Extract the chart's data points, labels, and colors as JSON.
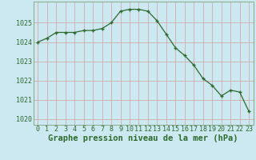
{
  "x": [
    0,
    1,
    2,
    3,
    4,
    5,
    6,
    7,
    8,
    9,
    10,
    11,
    12,
    13,
    14,
    15,
    16,
    17,
    18,
    19,
    20,
    21,
    22,
    23
  ],
  "y": [
    1024.0,
    1024.2,
    1024.5,
    1024.5,
    1024.5,
    1024.6,
    1024.6,
    1024.7,
    1025.0,
    1025.6,
    1025.7,
    1025.7,
    1025.6,
    1025.1,
    1024.4,
    1023.7,
    1023.3,
    1022.8,
    1022.1,
    1021.75,
    1021.2,
    1021.5,
    1021.4,
    1020.4
  ],
  "line_color": "#2d6a2d",
  "marker": "+",
  "bg_color": "#cce8f0",
  "grid_color": "#b0c8d0",
  "xlabel": "Graphe pression niveau de la mer (hPa)",
  "xlabel_color": "#2d6a2d",
  "ylim": [
    1019.7,
    1026.1
  ],
  "xlim": [
    -0.5,
    23.5
  ],
  "yticks": [
    1020,
    1021,
    1022,
    1023,
    1024,
    1025
  ],
  "xticks": [
    0,
    1,
    2,
    3,
    4,
    5,
    6,
    7,
    8,
    9,
    10,
    11,
    12,
    13,
    14,
    15,
    16,
    17,
    18,
    19,
    20,
    21,
    22,
    23
  ],
  "tick_fontsize": 6,
  "xlabel_fontsize": 7.5
}
